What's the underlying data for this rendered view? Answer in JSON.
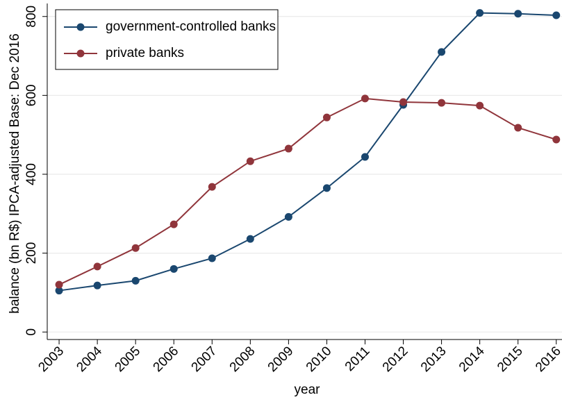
{
  "chart_data": {
    "type": "line",
    "x_label": "year",
    "y_label": "balance (bn R$) IPCA-adjusted Base: Dec 2016",
    "x": [
      2003,
      2004,
      2005,
      2006,
      2007,
      2008,
      2009,
      2010,
      2011,
      2012,
      2013,
      2014,
      2015,
      2016
    ],
    "series": [
      {
        "name": "government-controlled banks",
        "color": "#1a476f",
        "values": [
          105,
          118,
          130,
          160,
          187,
          236,
          292,
          365,
          444,
          576,
          710,
          809,
          807,
          803
        ]
      },
      {
        "name": "private banks",
        "color": "#90353b",
        "values": [
          120,
          166,
          213,
          273,
          368,
          433,
          465,
          544,
          592,
          583,
          581,
          574,
          518,
          488
        ]
      }
    ],
    "xlim": [
      2002.69,
      2016.15
    ],
    "xticks": [
      2003,
      2004,
      2005,
      2006,
      2007,
      2008,
      2009,
      2010,
      2011,
      2012,
      2013,
      2014,
      2015,
      2016
    ],
    "ylim": [
      -19,
      833
    ],
    "yticks": [
      0,
      200,
      400,
      600,
      800
    ],
    "grid": true,
    "legend": "top-left"
  }
}
